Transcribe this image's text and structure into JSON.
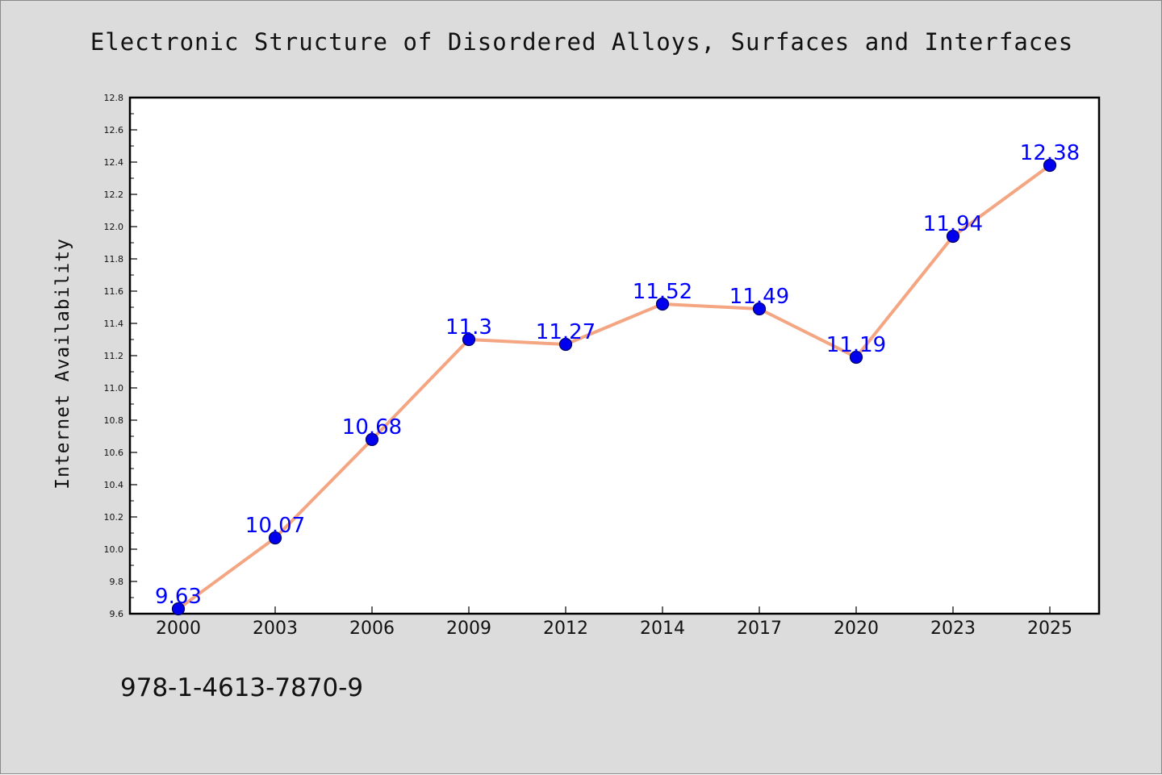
{
  "chart_data": {
    "type": "line",
    "title": "Electronic Structure of Disordered Alloys, Surfaces and Interfaces",
    "xlabel": "",
    "ylabel": "Internet Availability",
    "categories": [
      "2000",
      "2003",
      "2006",
      "2009",
      "2012",
      "2014",
      "2017",
      "2020",
      "2023",
      "2025"
    ],
    "series": [
      {
        "values": [
          9.63,
          10.07,
          10.68,
          11.3,
          11.27,
          11.52,
          11.49,
          11.19,
          11.94,
          12.38
        ]
      }
    ],
    "data_labels": [
      "9.63",
      "10.07",
      "10.68",
      "11.3",
      "11.27",
      "11.52",
      "11.49",
      "11.19",
      "11.94",
      "12.38"
    ],
    "ylim": [
      9.6,
      12.8
    ],
    "yticks": [
      "9.6",
      "9.8",
      "10.0",
      "10.2",
      "10.4",
      "10.6",
      "10.8",
      "11.0",
      "11.2",
      "11.4",
      "11.6",
      "11.8",
      "12.0",
      "12.2",
      "12.4",
      "12.6",
      "12.8"
    ],
    "grid": false,
    "legend": "none",
    "colors": {
      "line": "#f4a582",
      "marker": "#0000ee",
      "marker_edge": "#000066",
      "data_label": "#0000ff",
      "background": "#dcdcdc",
      "plot_area": "#ffffff"
    }
  },
  "footer": {
    "isbn": "978-1-4613-7870-9"
  }
}
